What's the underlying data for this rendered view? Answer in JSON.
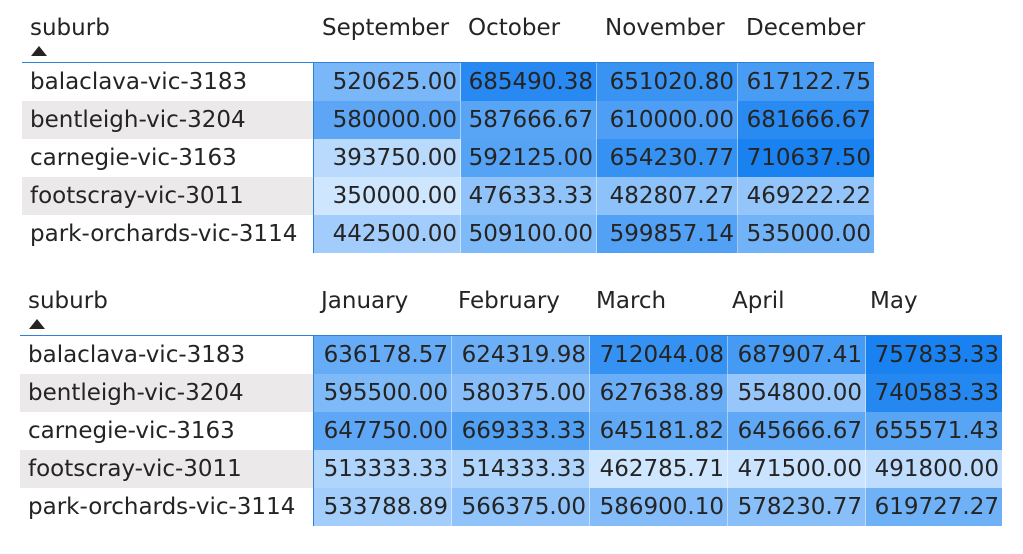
{
  "palette": {
    "light": "#cfe6ff",
    "dark": "#1a82f0"
  },
  "matrices": [
    {
      "row_header": "suburb",
      "columns": [
        "September",
        "October",
        "November",
        "December"
      ],
      "rows": [
        {
          "label": "balaclava-vic-3183",
          "values": [
            "520625.00",
            "685490.38",
            "651020.80",
            "617122.75"
          ]
        },
        {
          "label": "bentleigh-vic-3204",
          "values": [
            "580000.00",
            "587666.67",
            "610000.00",
            "681666.67"
          ]
        },
        {
          "label": "carnegie-vic-3163",
          "values": [
            "393750.00",
            "592125.00",
            "654230.77",
            "710637.50"
          ]
        },
        {
          "label": "footscray-vic-3011",
          "values": [
            "350000.00",
            "476333.33",
            "482807.27",
            "469222.22"
          ]
        },
        {
          "label": "park-orchards-vic-3114",
          "values": [
            "442500.00",
            "509100.00",
            "599857.14",
            "535000.00"
          ]
        }
      ]
    },
    {
      "row_header": "suburb",
      "columns": [
        "January",
        "February",
        "March",
        "April",
        "May"
      ],
      "rows": [
        {
          "label": "balaclava-vic-3183",
          "values": [
            "636178.57",
            "624319.98",
            "712044.08",
            "687907.41",
            "757833.33"
          ]
        },
        {
          "label": "bentleigh-vic-3204",
          "values": [
            "595500.00",
            "580375.00",
            "627638.89",
            "554800.00",
            "740583.33"
          ]
        },
        {
          "label": "carnegie-vic-3163",
          "values": [
            "647750.00",
            "669333.33",
            "645181.82",
            "645666.67",
            "655571.43"
          ]
        },
        {
          "label": "footscray-vic-3011",
          "values": [
            "513333.33",
            "514333.33",
            "462785.71",
            "471500.00",
            "491800.00"
          ]
        },
        {
          "label": "park-orchards-vic-3114",
          "values": [
            "533788.89",
            "566375.00",
            "586900.10",
            "578230.77",
            "619727.27"
          ]
        }
      ]
    }
  ]
}
